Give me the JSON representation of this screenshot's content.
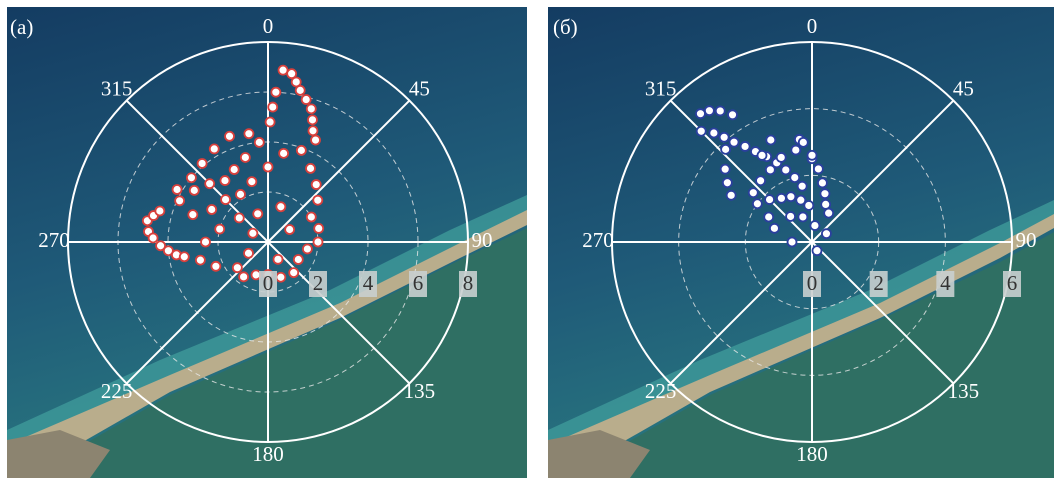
{
  "chart_data": [
    {
      "type": "polar_scatter",
      "title": "(a)",
      "color": "#d8403c",
      "grid": true,
      "rlim": [
        0,
        8
      ],
      "rticks": [
        0,
        2,
        4,
        6,
        8
      ],
      "thetaticks": [
        0,
        45,
        90,
        135,
        180,
        225,
        270,
        315
      ],
      "series": [
        {
          "color": "#d8403c",
          "theta": [
            5,
            8,
            10,
            12,
            15,
            18,
            20,
            22,
            25,
            3,
            2,
            1,
            280,
            283,
            286,
            275,
            272,
            268,
            265,
            262,
            260,
            300,
            310,
            320,
            330,
            340,
            350,
            355,
            345,
            335,
            325,
            315,
            305,
            295,
            290,
            300,
            315,
            330,
            345,
            0,
            10,
            20,
            30,
            40,
            50,
            60,
            75,
            90,
            100,
            120,
            140,
            160,
            180,
            200,
            215,
            230,
            245,
            255,
            270,
            285,
            310,
            340,
            20,
            60,
            150,
            240,
            300
          ],
          "r": [
            6.9,
            6.8,
            6.5,
            6.2,
            5.9,
            5.6,
            5.2,
            4.8,
            4.5,
            6.0,
            5.4,
            4.8,
            4.9,
            4.7,
            4.5,
            4.8,
            4.6,
            4.3,
            4.0,
            3.7,
            3.4,
            4.2,
            4.0,
            4.1,
            4.3,
            4.5,
            4.4,
            4.0,
            3.5,
            3.2,
            3.0,
            3.3,
            3.6,
            3.9,
            3.2,
            2.6,
            2.4,
            2.2,
            2.5,
            3.0,
            3.6,
            3.9,
            3.4,
            3.0,
            2.6,
            2.0,
            2.1,
            2.0,
            1.6,
            1.4,
            1.6,
            1.5,
            1.3,
            1.4,
            1.7,
            1.6,
            2.3,
            2.8,
            2.5,
            2.0,
            1.5,
            1.2,
            1.5,
            1.0,
            0.8,
            0.9,
            0.7
          ]
        }
      ]
    },
    {
      "type": "polar_scatter",
      "title": "(б)",
      "color": "#2b3f9e",
      "grid": true,
      "rlim": [
        0,
        6
      ],
      "rticks": [
        0,
        2,
        4,
        6
      ],
      "thetaticks": [
        0,
        45,
        90,
        135,
        180,
        225,
        270,
        315
      ],
      "series": [
        {
          "color": "#2b3f9e",
          "theta": [
            319,
            322,
            325,
            328,
            315,
            318,
            320,
            322,
            325,
            328,
            332,
            336,
            340,
            345,
            350,
            353,
            0,
            355,
            0,
            5,
            10,
            15,
            20,
            30,
            350,
            340,
            330,
            320,
            310,
            305,
            315,
            325,
            335,
            345,
            355,
            300,
            290,
            320,
            340,
            10,
            60,
            150,
            270,
            330,
            338,
            305,
            300,
            310,
            317
          ],
          "r": [
            5.1,
            5.0,
            4.8,
            4.5,
            4.7,
            4.4,
            4.1,
            3.8,
            3.5,
            3.2,
            2.9,
            2.6,
            2.3,
            2.0,
            1.7,
            3.1,
            2.5,
            3.0,
            2.6,
            2.2,
            1.8,
            1.5,
            1.2,
            1.0,
            2.8,
            2.7,
            2.5,
            2.4,
            2.3,
            2.0,
            1.8,
            1.6,
            1.5,
            1.3,
            1.1,
            1.5,
            1.2,
            1.0,
            0.8,
            0.5,
            0.5,
            0.3,
            0.6,
            3.0,
            3.3,
            3.1,
            2.8,
            3.4,
            3.8
          ]
        }
      ]
    }
  ]
}
